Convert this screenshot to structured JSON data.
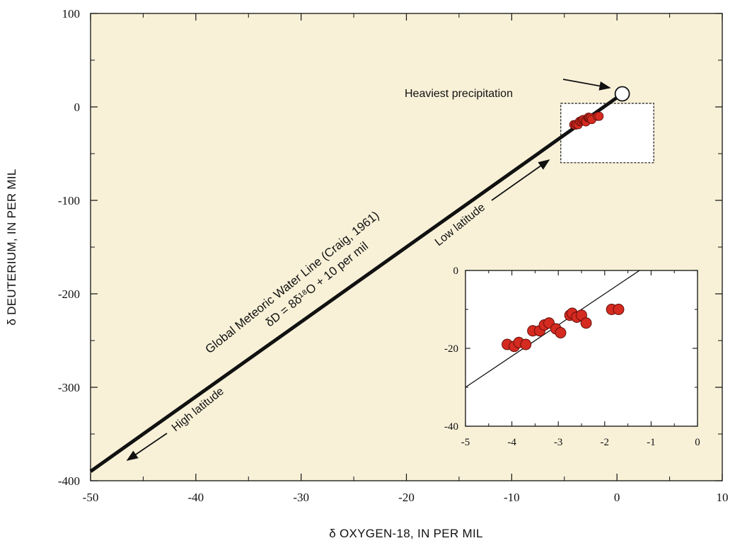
{
  "chart_data": [
    {
      "type": "line",
      "xlabel": "δ OXYGEN-18, IN PER MIL",
      "ylabel": "δ DEUTERIUM, IN PER MIL",
      "xlim": [
        -50,
        10
      ],
      "ylim": [
        -400,
        100
      ],
      "x_ticks": [
        "-50",
        "-40",
        "-30",
        "-20",
        "-10",
        "0",
        "10"
      ],
      "y_ticks": [
        "100",
        "0",
        "-100",
        "-200",
        "-300",
        "-400"
      ],
      "series": [
        {
          "name": "Global Meteoric Water Line (Craig, 1961)",
          "equation": "δD = 8δ¹⁸O + 10 per mil",
          "x": [
            -50,
            0.5
          ],
          "y": [
            -390,
            14
          ]
        }
      ],
      "scatter": {
        "x": [
          -4.1,
          -3.95,
          -3.85,
          -3.7,
          -3.55,
          -3.4,
          -3.3,
          -3.2,
          -3.05,
          -2.95,
          -2.75,
          -2.7,
          -2.6,
          -2.5,
          -2.4,
          -1.85,
          -1.7
        ],
        "y": [
          -19,
          -19.5,
          -18.5,
          -19,
          -15.5,
          -15.5,
          -14,
          -13.5,
          -15,
          -16,
          -11.5,
          -11,
          -12,
          -11.5,
          -13.5,
          -10,
          -10
        ]
      },
      "heaviest_point": {
        "x": 0.5,
        "y": 14
      },
      "zoom_box": {
        "x": [
          -5,
          0
        ],
        "y": [
          -40,
          0
        ]
      },
      "annotations": {
        "heaviest": "Heaviest precipitation",
        "low_latitude": "Low latitude",
        "high_latitude": "High latitude"
      },
      "colors": {
        "plot_bg": "#f8f1d8",
        "points": "#d42a20",
        "line": "#111111"
      }
    },
    {
      "type": "scatter",
      "xlim": [
        -5,
        0
      ],
      "ylim": [
        -40,
        0
      ],
      "x_ticks": [
        "-5",
        "-4",
        "-3",
        "-2",
        "-1",
        "0"
      ],
      "y_ticks": [
        "0",
        "-20",
        "-40"
      ],
      "x": [
        -4.1,
        -3.95,
        -3.85,
        -3.7,
        -3.55,
        -3.4,
        -3.3,
        -3.2,
        -3.05,
        -2.95,
        -2.75,
        -2.7,
        -2.6,
        -2.5,
        -2.4,
        -1.85,
        -1.7
      ],
      "y": [
        -19,
        -19.5,
        -18.5,
        -19,
        -15.5,
        -15.5,
        -14,
        -13.5,
        -15,
        -16,
        -11.5,
        -11,
        -12,
        -11.5,
        -13.5,
        -10,
        -10
      ],
      "line": {
        "x": [
          -5,
          -1.25
        ],
        "y": [
          -30,
          0
        ]
      },
      "colors": {
        "plot_bg": "#ffffff",
        "points": "#d42a20"
      }
    }
  ]
}
